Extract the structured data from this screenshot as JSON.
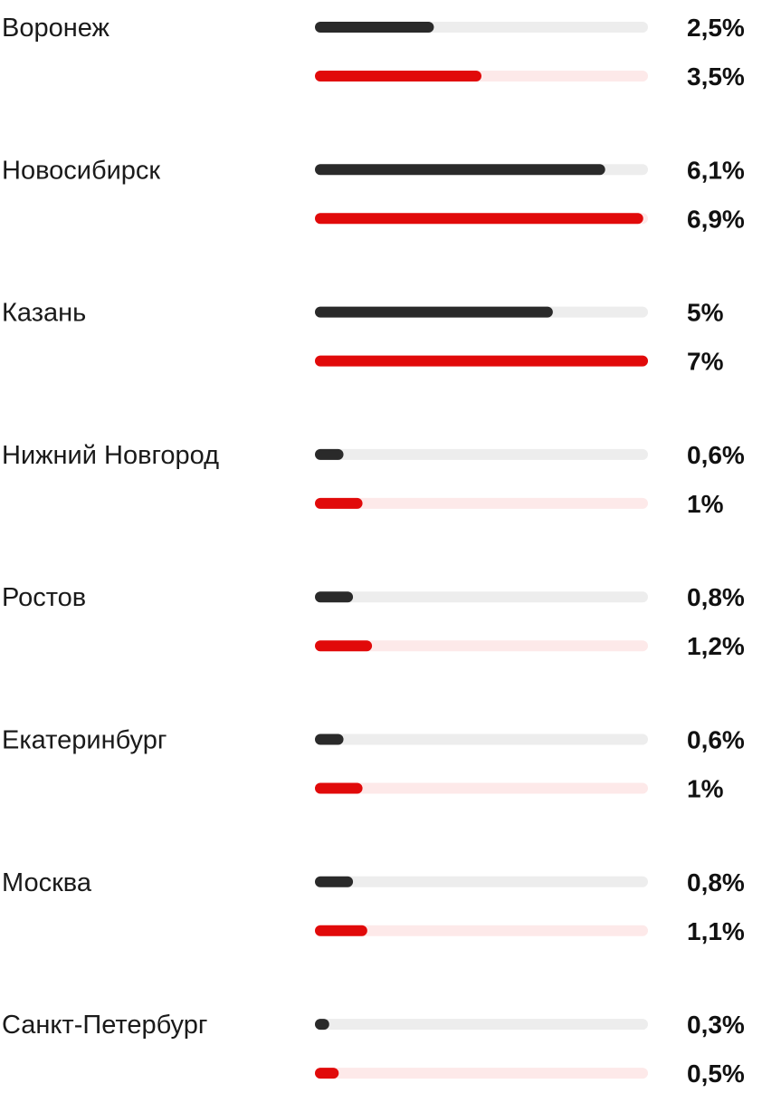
{
  "chart_data": {
    "type": "bar",
    "orientation": "horizontal",
    "categories": [
      "Воронеж",
      "Новосибирск",
      "Казань",
      "Нижний Новгород",
      "Ростов",
      "Екатеринбург",
      "Москва",
      "Санкт-Петербург"
    ],
    "series": [
      {
        "values": [
          2.5,
          6.1,
          5,
          0.6,
          0.8,
          0.6,
          0.8,
          0.3
        ],
        "value_labels": [
          "2,5%",
          "6,1%",
          "5%",
          "0,6%",
          "0,8%",
          "0,6%",
          "0,8%",
          "0,3%"
        ],
        "color": "#2a2a2a",
        "track_color": "#ededed"
      },
      {
        "values": [
          3.5,
          6.9,
          7,
          1,
          1.2,
          1,
          1.1,
          0.5
        ],
        "value_labels": [
          "3,5%",
          "6,9%",
          "7%",
          "1%",
          "1,2%",
          "1%",
          "1,1%",
          "0,5%"
        ],
        "color": "#e10a0a",
        "track_color": "#fde9e9"
      }
    ],
    "xlim": [
      0,
      7
    ],
    "grid": false,
    "legend": "none"
  }
}
